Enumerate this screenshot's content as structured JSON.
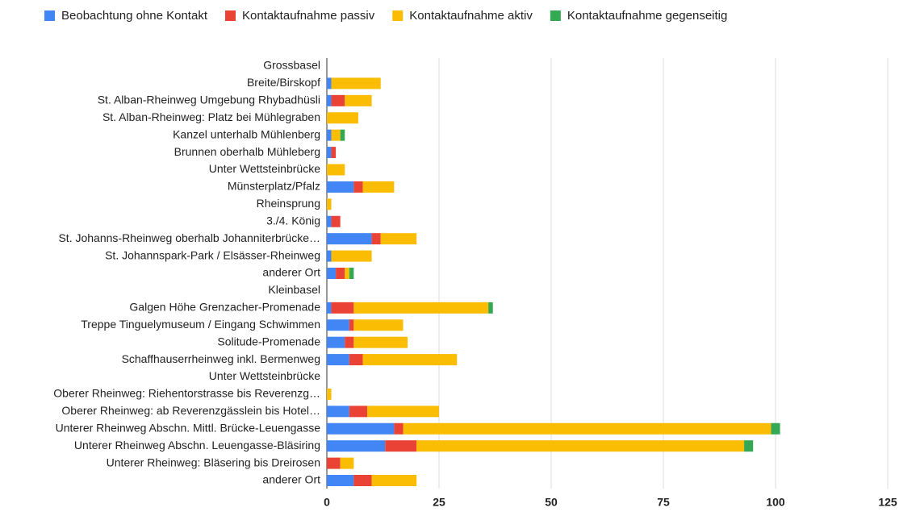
{
  "chart_data": {
    "type": "stacked-bar-horizontal",
    "categories": [
      "Grossbasel",
      "Breite/Birskopf",
      "St. Alban-Rheinweg Umgebung Rhybadhüsli",
      "St. Alban-Rheinweg: Platz bei Mühlegraben",
      "Kanzel unterhalb Mühlenberg",
      "Brunnen oberhalb Mühleberg",
      "Unter Wettsteinbrücke",
      "Münsterplatz/Pfalz",
      "Rheinsprung",
      "3./4. König",
      "St. Johanns-Rheinweg oberhalb Johanniterbrücke…",
      "St. Johannspark-Park / Elsässer-Rheinweg",
      "anderer Ort",
      "Kleinbasel",
      "Galgen Höhe Grenzacher-Promenade",
      "Treppe Tinguelymuseum / Eingang Schwimmen",
      "Solitude-Promenade",
      "Schaffhauserrheinweg inkl. Bermenweg",
      "Unter Wettsteinbrücke",
      "Oberer Rheinweg: Riehentorstrasse bis Reverenzg…",
      "Oberer Rheinweg: ab Reverenzgässlein bis Hotel…",
      "Unterer Rheinweg Abschn. Mittl. Brücke-Leuengasse",
      "Unterer Rheinweg Abschn. Leuengasse-Bläsiring",
      "Unterer Rheinweg: Bläsering bis Dreirosen",
      "anderer Ort"
    ],
    "series": [
      {
        "name": "Beobachtung ohne Kontakt",
        "color": "#4285f4",
        "values": [
          0,
          1,
          1,
          0,
          1,
          1,
          0,
          6,
          0,
          1,
          10,
          1,
          2,
          0,
          1,
          5,
          4,
          5,
          0,
          0,
          5,
          15,
          13,
          0,
          6
        ]
      },
      {
        "name": "Kontaktaufnahme passiv",
        "color": "#ea4335",
        "values": [
          0,
          0,
          3,
          0,
          0,
          1,
          0,
          2,
          0,
          2,
          2,
          0,
          2,
          0,
          5,
          1,
          2,
          3,
          0,
          0,
          4,
          2,
          7,
          3,
          4
        ]
      },
      {
        "name": "Kontaktaufnahme aktiv",
        "color": "#fbbc04",
        "values": [
          0,
          11,
          6,
          7,
          2,
          0,
          4,
          7,
          1,
          0,
          8,
          9,
          1,
          0,
          30,
          11,
          12,
          21,
          0,
          1,
          16,
          82,
          73,
          3,
          10
        ]
      },
      {
        "name": "Kontaktaufnahme gegenseitig",
        "color": "#34a853",
        "values": [
          0,
          0,
          0,
          0,
          1,
          0,
          0,
          0,
          0,
          0,
          0,
          0,
          1,
          0,
          1,
          0,
          0,
          0,
          0,
          0,
          0,
          2,
          2,
          0,
          0
        ]
      }
    ],
    "xlim": [
      0,
      125
    ],
    "xticks": [
      0,
      25,
      50,
      75,
      100,
      125
    ],
    "grid": true,
    "legend": "top"
  }
}
